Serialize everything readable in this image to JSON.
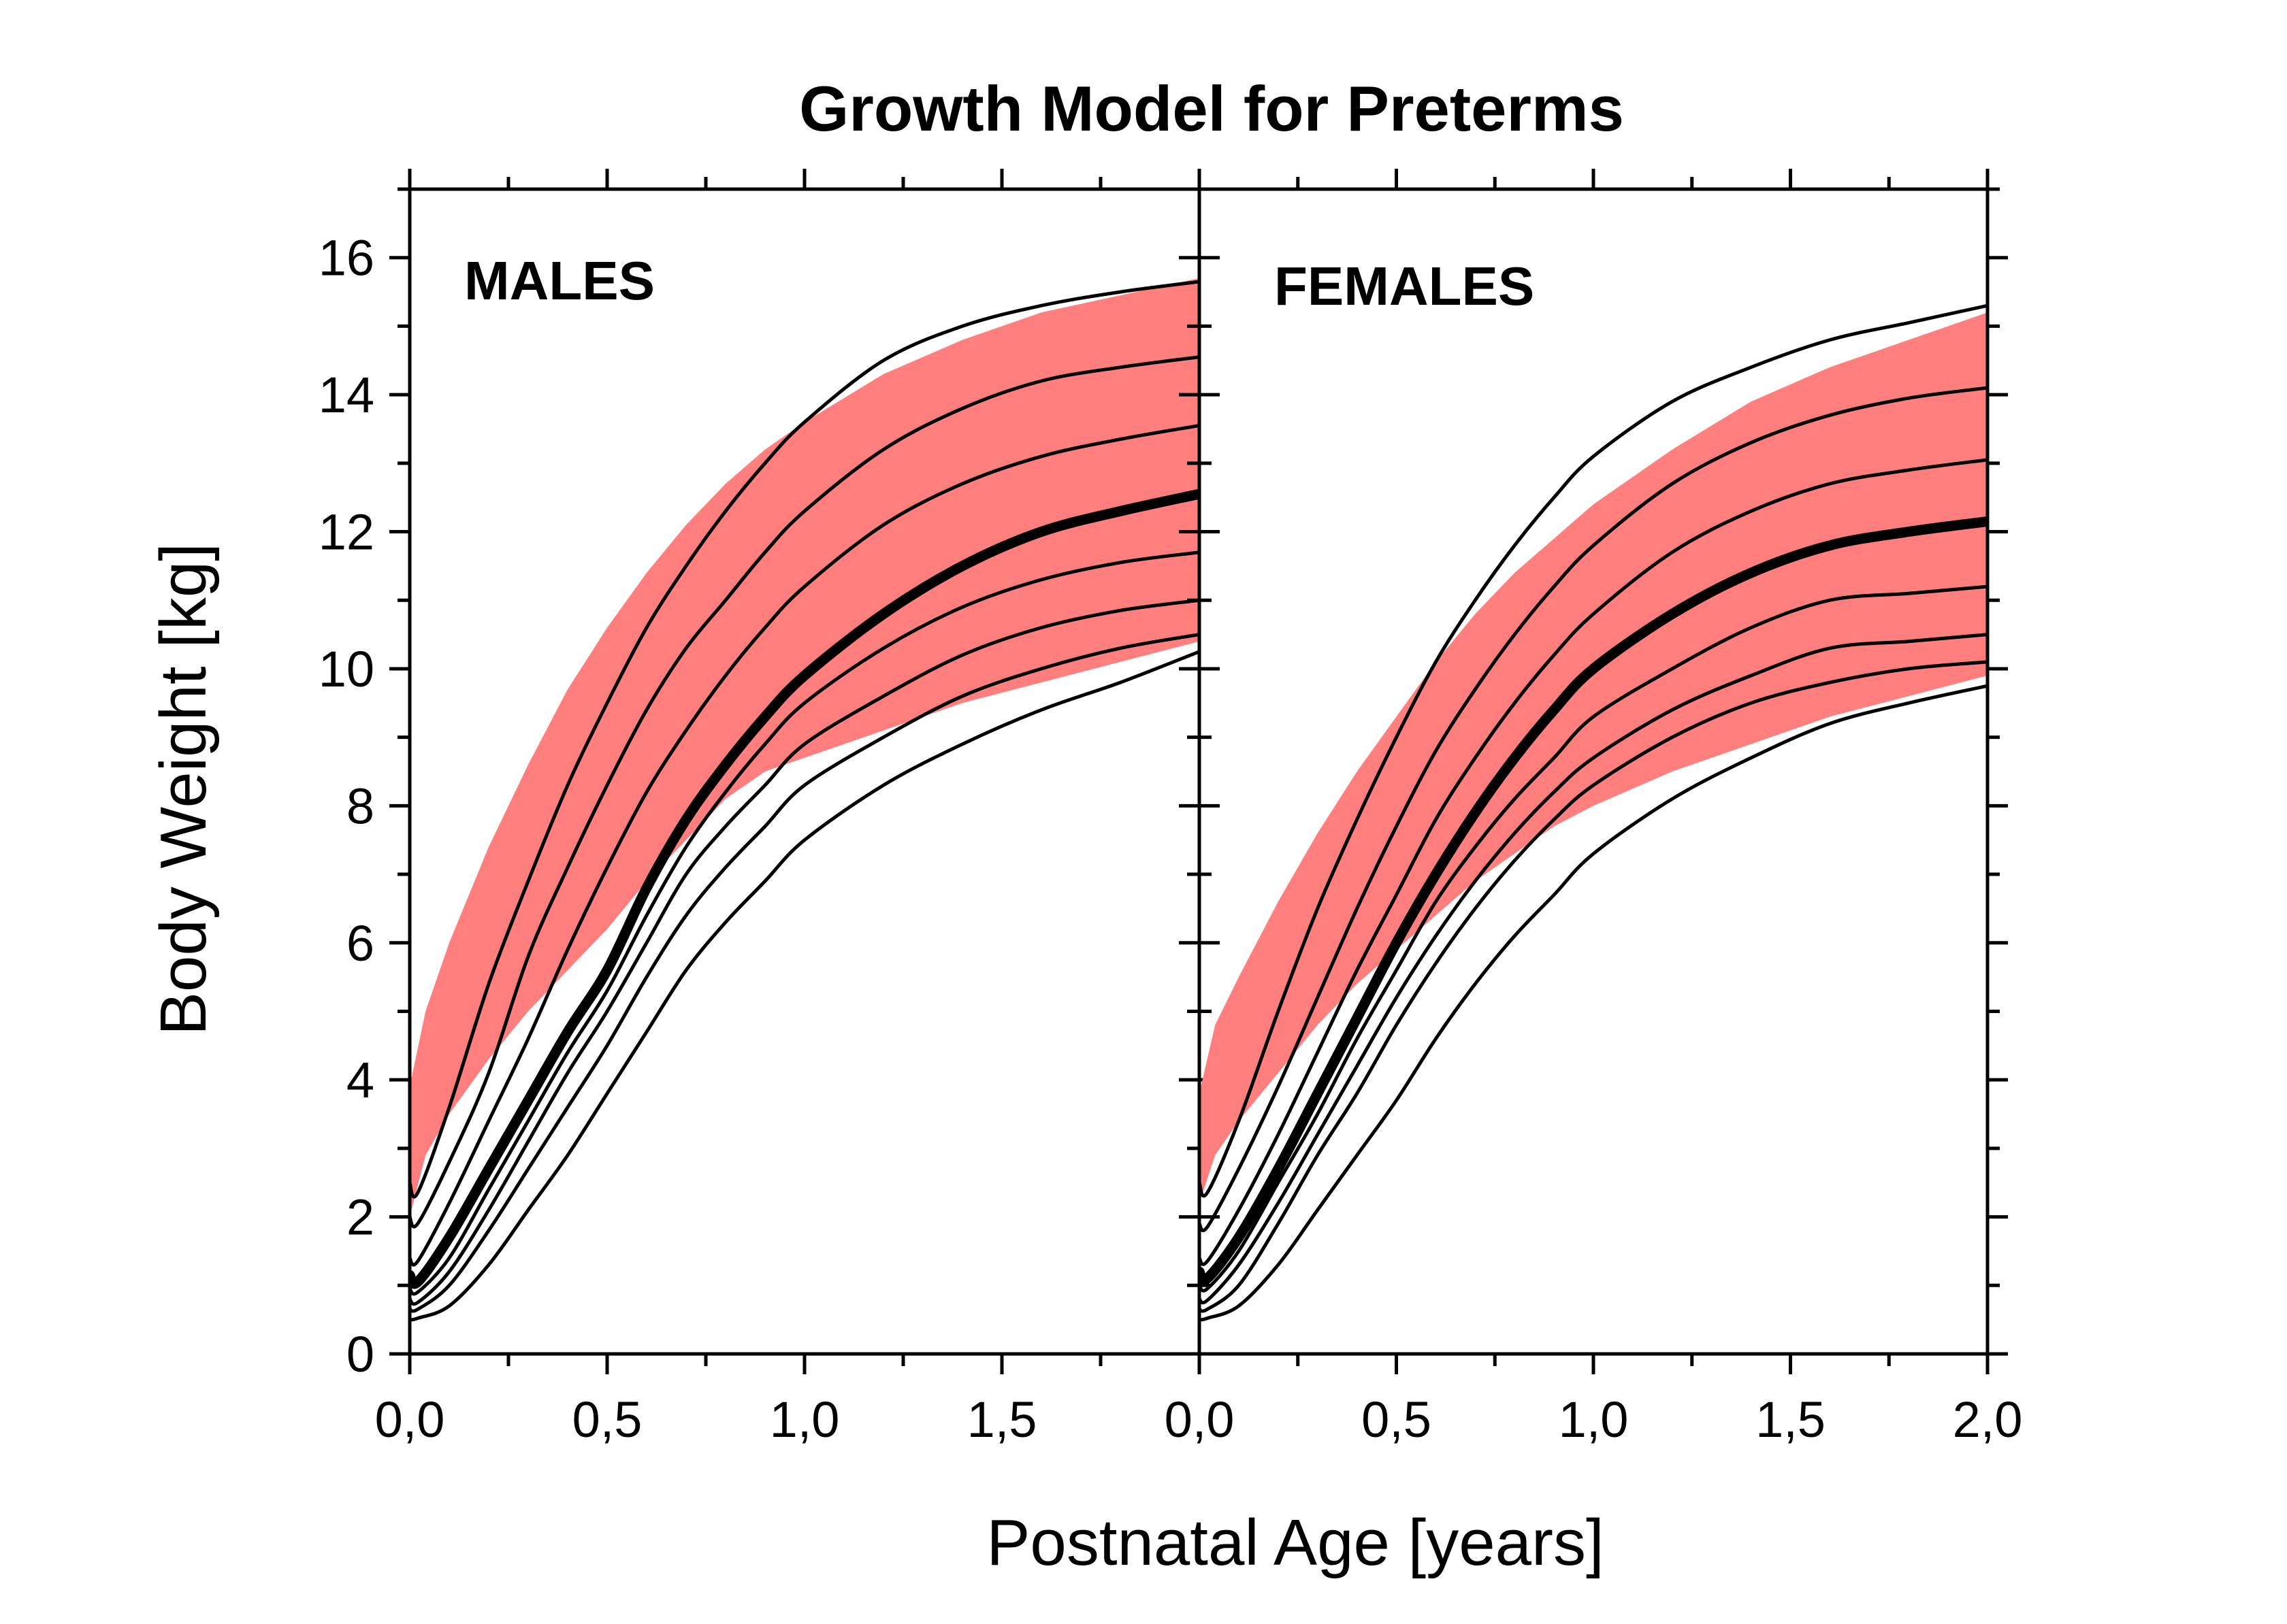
{
  "chart_data": {
    "type": "line",
    "title": "Growth Model for Preterms",
    "xlabel": "Postnatal Age [years]",
    "ylabel": "Body Weight [kg]",
    "xlim": [
      0,
      2
    ],
    "ylim": [
      0,
      17
    ],
    "grid": false,
    "colors": {
      "band": "#ff7f7f",
      "line": "#000000"
    },
    "y_ticks": [
      0,
      2,
      4,
      6,
      8,
      10,
      12,
      14,
      16
    ],
    "y_tick_labels": [
      "0",
      "2",
      "4",
      "6",
      "8",
      "10",
      "12",
      "14",
      "16"
    ],
    "panels": [
      {
        "label": "MALES",
        "x_ticks": [
          0,
          0.5,
          1,
          1.5
        ],
        "x_tick_labels": [
          "0,0",
          "0,5",
          "1,0",
          "1,5"
        ],
        "band": {
          "x": [
            0,
            0.04,
            0.1,
            0.2,
            0.3,
            0.4,
            0.5,
            0.6,
            0.7,
            0.8,
            0.9,
            1.0,
            1.2,
            1.4,
            1.6,
            1.8,
            2.0
          ],
          "upper": [
            3.9,
            5.0,
            6.0,
            7.4,
            8.6,
            9.7,
            10.6,
            11.4,
            12.1,
            12.7,
            13.2,
            13.6,
            14.3,
            14.8,
            15.2,
            15.45,
            15.7
          ],
          "lower": [
            2.0,
            2.9,
            3.5,
            4.3,
            5.0,
            5.6,
            6.2,
            6.9,
            7.5,
            8.1,
            8.5,
            8.7,
            9.1,
            9.5,
            9.8,
            10.1,
            10.4
          ]
        },
        "series": [
          {
            "x": [
              0,
              0.02,
              0.1,
              0.2,
              0.3,
              0.4,
              0.5,
              0.6,
              0.7,
              0.8,
              0.9,
              1.0,
              1.2,
              1.4,
              1.6,
              1.8,
              2.0
            ],
            "y": [
              2.5,
              2.35,
              3.6,
              5.4,
              6.9,
              8.3,
              9.5,
              10.6,
              11.5,
              12.3,
              13.0,
              13.6,
              14.5,
              15.0,
              15.3,
              15.5,
              15.65
            ],
            "weight": "thin"
          },
          {
            "x": [
              0,
              0.02,
              0.1,
              0.2,
              0.3,
              0.4,
              0.5,
              0.6,
              0.7,
              0.8,
              0.9,
              1.0,
              1.2,
              1.4,
              1.6,
              1.8,
              2.0
            ],
            "y": [
              2.0,
              1.9,
              2.8,
              4.1,
              5.8,
              7.1,
              8.3,
              9.4,
              10.3,
              11.0,
              11.7,
              12.3,
              13.2,
              13.8,
              14.2,
              14.4,
              14.55
            ],
            "weight": "thin"
          },
          {
            "x": [
              0,
              0.02,
              0.1,
              0.2,
              0.3,
              0.4,
              0.5,
              0.6,
              0.7,
              0.8,
              0.9,
              1.0,
              1.2,
              1.4,
              1.6,
              1.8,
              2.0
            ],
            "y": [
              1.4,
              1.35,
              2.2,
              3.4,
              4.6,
              5.9,
              7.1,
              8.2,
              9.1,
              9.9,
              10.6,
              11.2,
              12.1,
              12.7,
              13.1,
              13.35,
              13.55
            ],
            "weight": "thin"
          },
          {
            "x": [
              0,
              0.02,
              0.1,
              0.2,
              0.3,
              0.4,
              0.5,
              0.6,
              0.7,
              0.8,
              0.9,
              1.0,
              1.2,
              1.4,
              1.6,
              1.8,
              2.0
            ],
            "y": [
              1.15,
              1.05,
              1.7,
              2.7,
              3.7,
              4.7,
              5.6,
              6.8,
              7.8,
              8.6,
              9.3,
              9.9,
              10.8,
              11.5,
              12.0,
              12.3,
              12.55
            ],
            "weight": "bold"
          },
          {
            "x": [
              0,
              0.02,
              0.1,
              0.2,
              0.3,
              0.4,
              0.5,
              0.6,
              0.7,
              0.8,
              0.9,
              1.0,
              1.2,
              1.4,
              1.6,
              1.8,
              2.0
            ],
            "y": [
              0.95,
              0.9,
              1.4,
              2.4,
              3.4,
              4.4,
              5.3,
              6.4,
              7.4,
              8.2,
              8.9,
              9.5,
              10.3,
              10.9,
              11.3,
              11.55,
              11.7
            ],
            "weight": "thin"
          },
          {
            "x": [
              0,
              0.02,
              0.1,
              0.2,
              0.3,
              0.4,
              0.5,
              0.6,
              0.7,
              0.8,
              0.9,
              1.0,
              1.2,
              1.4,
              1.6,
              1.8,
              2.0
            ],
            "y": [
              0.8,
              0.75,
              1.2,
              2.1,
              3.1,
              4.1,
              5.0,
              6.0,
              7.0,
              7.7,
              8.3,
              8.9,
              9.6,
              10.2,
              10.6,
              10.85,
              11.0
            ],
            "weight": "thin"
          },
          {
            "x": [
              0,
              0.02,
              0.1,
              0.2,
              0.3,
              0.4,
              0.5,
              0.6,
              0.7,
              0.8,
              0.9,
              1.0,
              1.2,
              1.4,
              1.6,
              1.8,
              2.0
            ],
            "y": [
              0.65,
              0.65,
              1.0,
              1.8,
              2.7,
              3.6,
              4.5,
              5.5,
              6.4,
              7.1,
              7.7,
              8.3,
              9.0,
              9.6,
              10.0,
              10.3,
              10.5
            ],
            "weight": "thin"
          },
          {
            "x": [
              0,
              0.02,
              0.1,
              0.2,
              0.3,
              0.4,
              0.5,
              0.6,
              0.7,
              0.8,
              0.9,
              1.0,
              1.2,
              1.4,
              1.6,
              1.8,
              2.0
            ],
            "y": [
              0.5,
              0.52,
              0.7,
              1.3,
              2.1,
              2.9,
              3.8,
              4.7,
              5.6,
              6.3,
              6.9,
              7.5,
              8.3,
              8.9,
              9.4,
              9.8,
              10.25
            ],
            "weight": "thin"
          }
        ]
      },
      {
        "label": "FEMALES",
        "x_ticks": [
          0,
          0.5,
          1,
          1.5,
          2
        ],
        "x_tick_labels": [
          "0,0",
          "0,5",
          "1,0",
          "1,5",
          "2,0"
        ],
        "band": {
          "x": [
            0,
            0.04,
            0.1,
            0.2,
            0.3,
            0.4,
            0.5,
            0.6,
            0.7,
            0.8,
            0.9,
            1.0,
            1.2,
            1.4,
            1.6,
            1.8,
            2.0
          ],
          "upper": [
            3.8,
            4.8,
            5.5,
            6.6,
            7.6,
            8.5,
            9.3,
            10.1,
            10.8,
            11.4,
            11.9,
            12.4,
            13.2,
            13.9,
            14.4,
            14.8,
            15.2
          ],
          "lower": [
            2.2,
            2.9,
            3.4,
            4.1,
            4.8,
            5.4,
            5.9,
            6.4,
            6.9,
            7.3,
            7.7,
            8.0,
            8.5,
            8.9,
            9.3,
            9.6,
            9.9
          ]
        },
        "series": [
          {
            "x": [
              0,
              0.02,
              0.1,
              0.2,
              0.3,
              0.4,
              0.5,
              0.6,
              0.7,
              0.8,
              0.9,
              1.0,
              1.2,
              1.4,
              1.6,
              1.8,
              2.0
            ],
            "y": [
              2.5,
              2.35,
              3.4,
              5.0,
              6.5,
              7.8,
              9.0,
              10.1,
              11.0,
              11.8,
              12.5,
              13.1,
              13.9,
              14.4,
              14.8,
              15.05,
              15.3
            ],
            "weight": "thin"
          },
          {
            "x": [
              0,
              0.02,
              0.1,
              0.2,
              0.3,
              0.4,
              0.5,
              0.6,
              0.7,
              0.8,
              0.9,
              1.0,
              1.2,
              1.4,
              1.6,
              1.8,
              2.0
            ],
            "y": [
              1.9,
              1.85,
              2.7,
              3.9,
              5.2,
              6.5,
              7.7,
              8.8,
              9.7,
              10.5,
              11.2,
              11.8,
              12.7,
              13.3,
              13.7,
              13.95,
              14.1
            ],
            "weight": "thin"
          },
          {
            "x": [
              0,
              0.02,
              0.1,
              0.2,
              0.3,
              0.4,
              0.5,
              0.6,
              0.7,
              0.8,
              0.9,
              1.0,
              1.2,
              1.4,
              1.6,
              1.8,
              2.0
            ],
            "y": [
              1.4,
              1.35,
              2.1,
              3.2,
              4.4,
              5.6,
              6.7,
              7.8,
              8.7,
              9.5,
              10.2,
              10.8,
              11.7,
              12.3,
              12.7,
              12.9,
              13.05
            ],
            "weight": "thin"
          },
          {
            "x": [
              0,
              0.02,
              0.1,
              0.2,
              0.3,
              0.4,
              0.5,
              0.6,
              0.7,
              0.8,
              0.9,
              1.0,
              1.2,
              1.4,
              1.6,
              1.8,
              2.0
            ],
            "y": [
              1.2,
              1.1,
              1.7,
              2.7,
              3.8,
              4.9,
              6.0,
              7.0,
              7.9,
              8.7,
              9.4,
              10.0,
              10.8,
              11.4,
              11.8,
              12.0,
              12.15
            ],
            "weight": "bold"
          },
          {
            "x": [
              0,
              0.02,
              0.1,
              0.2,
              0.3,
              0.4,
              0.5,
              0.6,
              0.7,
              0.8,
              0.9,
              1.0,
              1.2,
              1.4,
              1.6,
              1.8,
              2.0
            ],
            "y": [
              1.0,
              0.95,
              1.5,
              2.5,
              3.5,
              4.6,
              5.6,
              6.6,
              7.4,
              8.1,
              8.7,
              9.3,
              10.0,
              10.6,
              11.0,
              11.1,
              11.2
            ],
            "weight": "thin"
          },
          {
            "x": [
              0,
              0.02,
              0.1,
              0.2,
              0.3,
              0.4,
              0.5,
              0.6,
              0.7,
              0.8,
              0.9,
              1.0,
              1.2,
              1.4,
              1.6,
              1.8,
              2.0
            ],
            "y": [
              0.8,
              0.78,
              1.3,
              2.2,
              3.2,
              4.2,
              5.2,
              6.1,
              6.9,
              7.6,
              8.2,
              8.7,
              9.4,
              9.9,
              10.3,
              10.4,
              10.5
            ],
            "weight": "thin"
          },
          {
            "x": [
              0,
              0.02,
              0.1,
              0.2,
              0.3,
              0.4,
              0.5,
              0.6,
              0.7,
              0.8,
              0.9,
              1.0,
              1.2,
              1.4,
              1.6,
              1.8,
              2.0
            ],
            "y": [
              0.65,
              0.65,
              1.0,
              1.9,
              2.9,
              3.8,
              4.8,
              5.7,
              6.5,
              7.2,
              7.8,
              8.3,
              9.0,
              9.5,
              9.8,
              10.0,
              10.1
            ],
            "weight": "thin"
          },
          {
            "x": [
              0,
              0.02,
              0.1,
              0.2,
              0.3,
              0.4,
              0.5,
              0.6,
              0.7,
              0.8,
              0.9,
              1.0,
              1.2,
              1.4,
              1.6,
              1.8,
              2.0
            ],
            "y": [
              0.5,
              0.52,
              0.7,
              1.3,
              2.1,
              2.9,
              3.7,
              4.6,
              5.4,
              6.1,
              6.7,
              7.3,
              8.1,
              8.7,
              9.2,
              9.5,
              9.75
            ],
            "weight": "thin"
          }
        ]
      }
    ]
  }
}
